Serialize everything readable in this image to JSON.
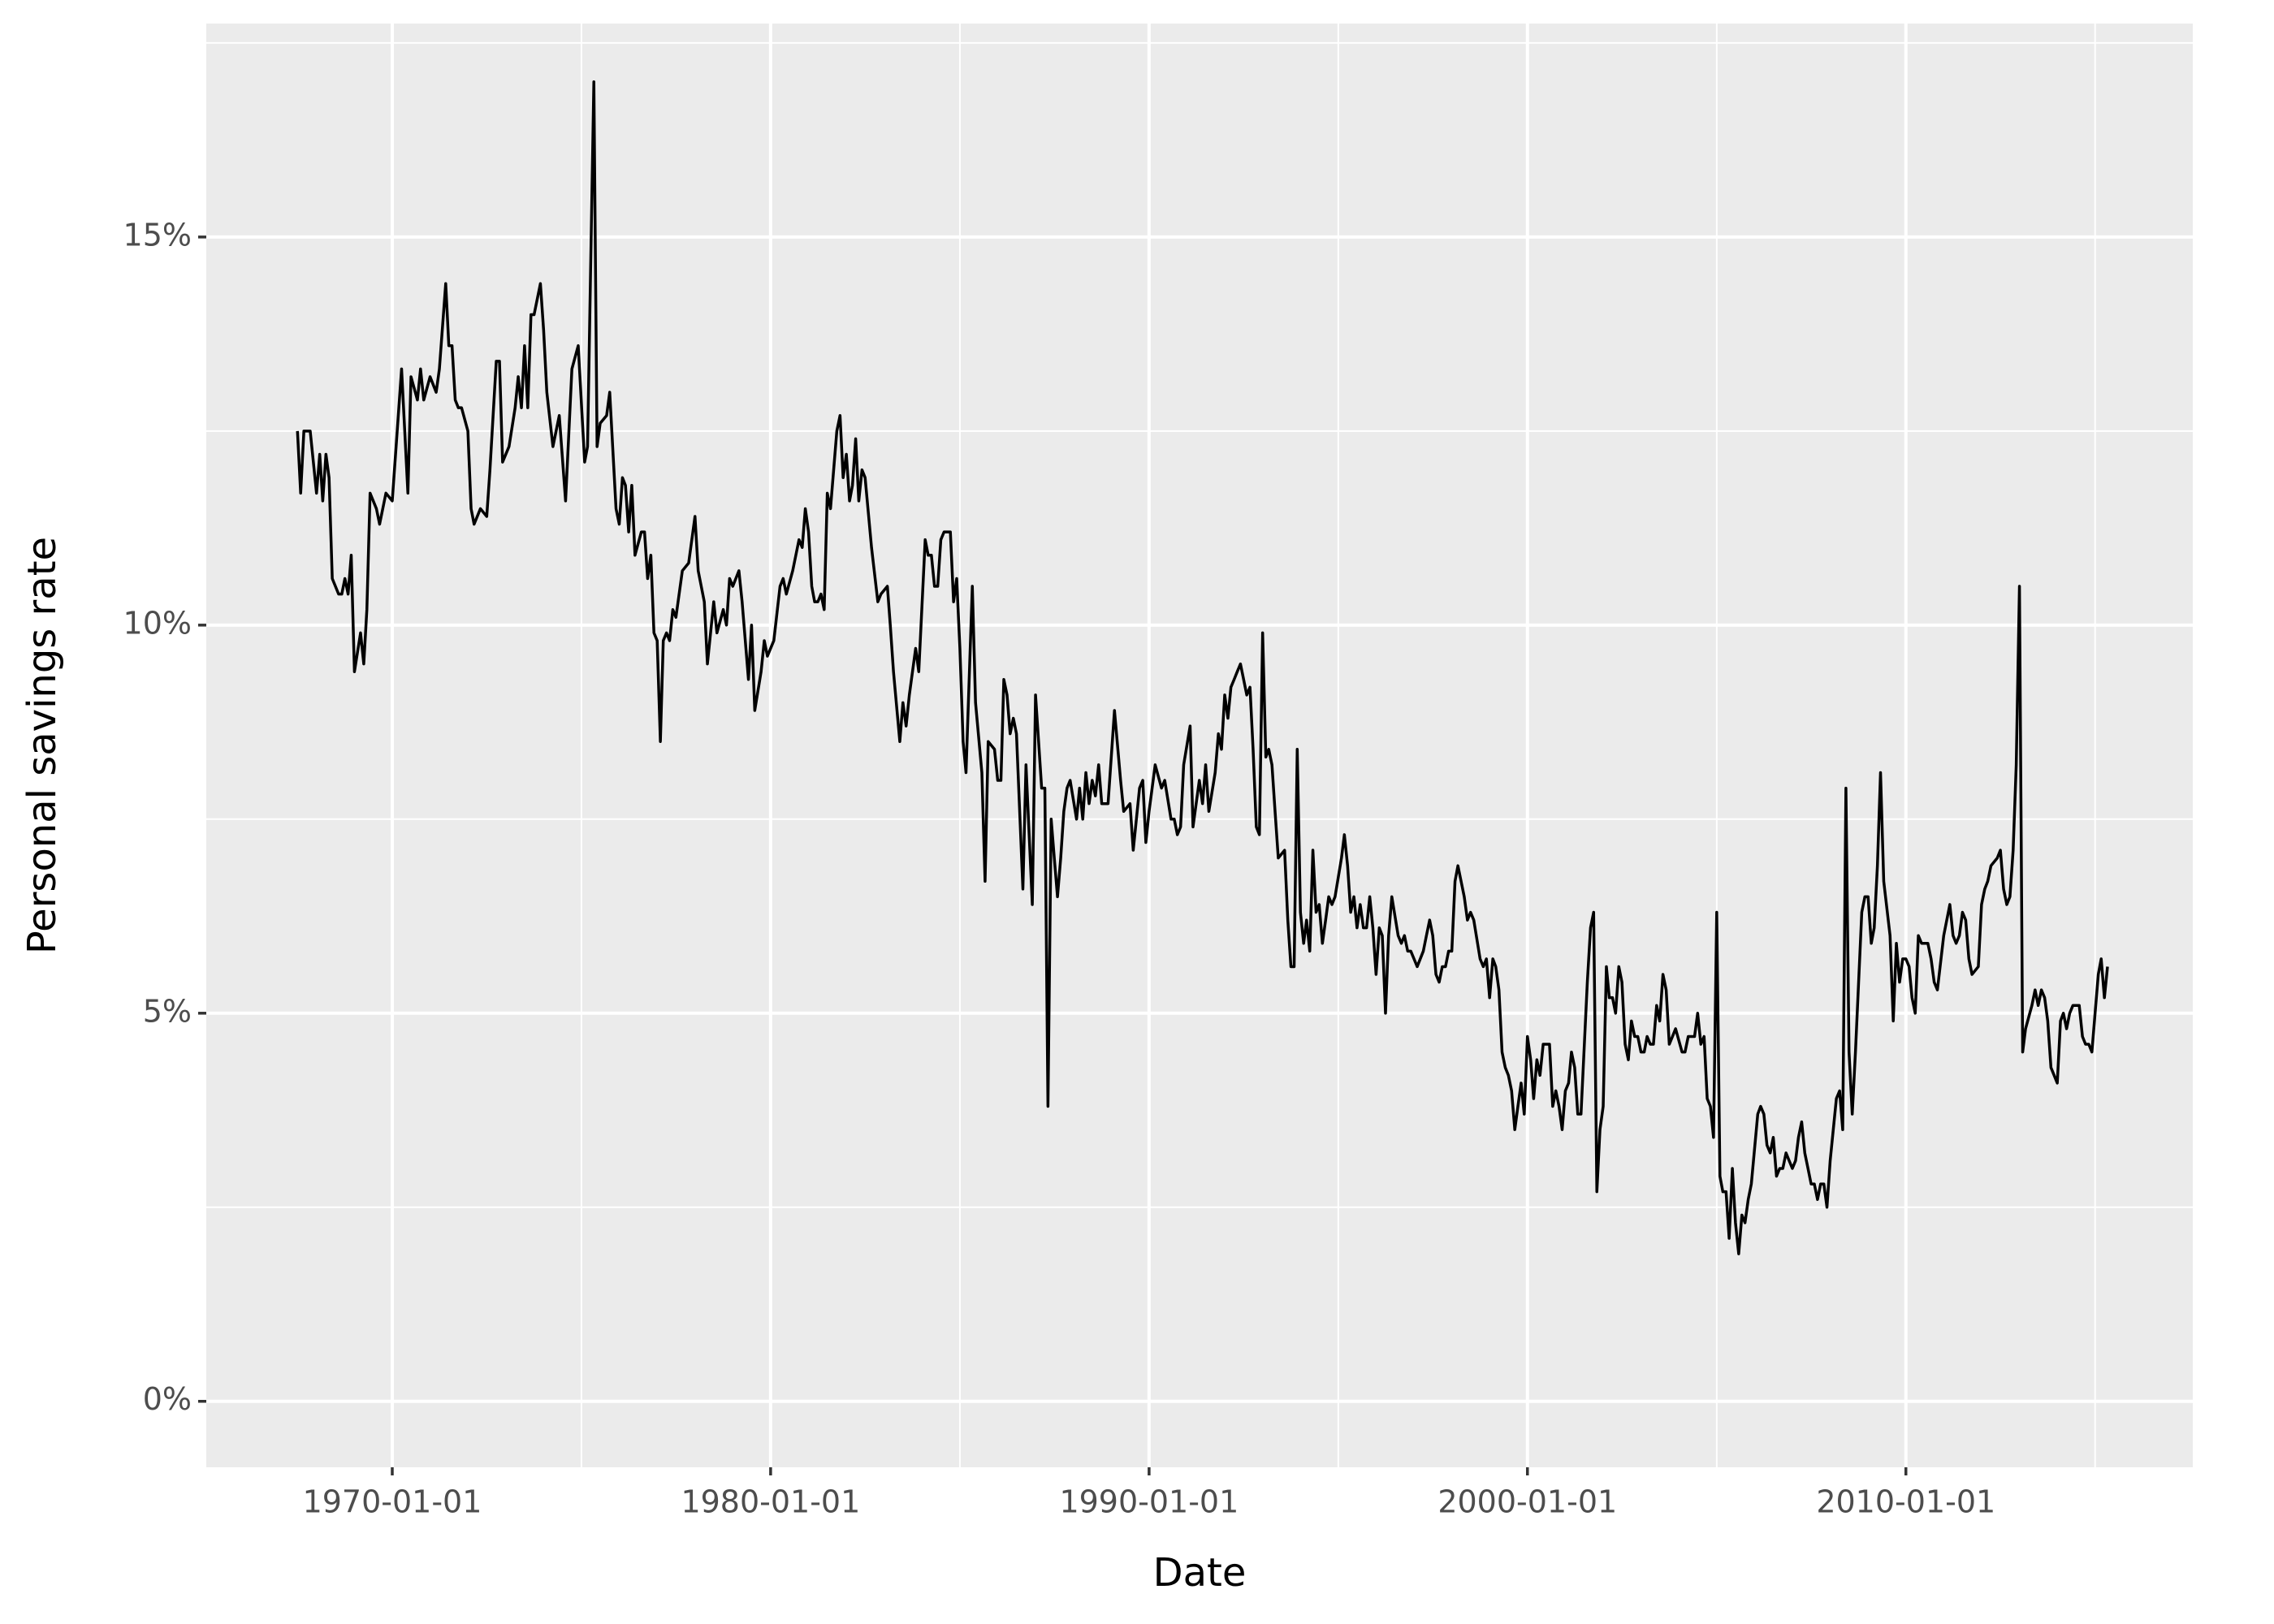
{
  "chart_data": {
    "type": "line",
    "x_label": "Date",
    "y_label": "Personal savings rate",
    "color": "#000000",
    "grid": true,
    "background": "#ebebeb",
    "xlim": [
      "1965-02-01",
      "2017-08-01"
    ],
    "xticks": [
      "1970-01-01",
      "1980-01-01",
      "1990-01-01",
      "2000-01-01",
      "2010-01-01"
    ],
    "minor_xticks": [
      "1975-01-01",
      "1985-01-01",
      "1995-01-01",
      "2005-01-01",
      "2015-01-01"
    ],
    "ylim": [
      -0.85,
      17.75
    ],
    "yticks": [
      {
        "value": 0,
        "label": "0%"
      },
      {
        "value": 5,
        "label": "5%"
      },
      {
        "value": 10,
        "label": "10%"
      },
      {
        "value": 15,
        "label": "15%"
      }
    ],
    "minor_yticks": [
      2.5,
      7.5,
      12.5,
      17.5
    ],
    "x": [
      "1967-07-01",
      "1967-08-01",
      "1967-09-01",
      "1967-11-01",
      "1968-01-01",
      "1968-02-01",
      "1968-03-01",
      "1968-04-01",
      "1968-05-01",
      "1968-06-01",
      "1968-08-01",
      "1968-09-01",
      "1968-10-01",
      "1968-11-01",
      "1968-12-01",
      "1969-01-01",
      "1969-03-01",
      "1969-04-01",
      "1969-05-01",
      "1969-06-01",
      "1969-08-01",
      "1969-09-01",
      "1969-11-01",
      "1970-01-01",
      "1970-04-01",
      "1970-06-01",
      "1970-07-01",
      "1970-09-01",
      "1970-10-01",
      "1970-11-01",
      "1971-01-01",
      "1971-03-01",
      "1971-04-01",
      "1971-06-01",
      "1971-07-01",
      "1971-08-01",
      "1971-09-01",
      "1971-10-01",
      "1971-11-01",
      "1972-01-01",
      "1972-02-01",
      "1972-03-01",
      "1972-05-01",
      "1972-07-01",
      "1972-08-01",
      "1972-10-01",
      "1972-11-01",
      "1972-12-01",
      "1973-02-01",
      "1973-04-01",
      "1973-05-01",
      "1973-06-01",
      "1973-07-01",
      "1973-08-01",
      "1973-09-01",
      "1973-10-01",
      "1973-12-01",
      "1974-01-01",
      "1974-02-01",
      "1974-04-01",
      "1974-06-01",
      "1974-08-01",
      "1974-10-01",
      "1974-12-01",
      "1975-02-01",
      "1975-03-01",
      "1975-05-01",
      "1975-06-01",
      "1975-07-01",
      "1975-09-01",
      "1975-10-01",
      "1975-12-01",
      "1976-01-01",
      "1976-02-01",
      "1976-03-01",
      "1976-04-01",
      "1976-05-01",
      "1976-06-01",
      "1976-08-01",
      "1976-09-01",
      "1976-10-01",
      "1976-11-01",
      "1976-12-01",
      "1977-01-01",
      "1977-02-01",
      "1977-03-01",
      "1977-04-01",
      "1977-05-01",
      "1977-06-01",
      "1977-07-01",
      "1977-09-01",
      "1977-11-01",
      "1978-01-01",
      "1978-02-01",
      "1978-04-01",
      "1978-05-01",
      "1978-07-01",
      "1978-08-01",
      "1978-10-01",
      "1978-11-01",
      "1978-12-01",
      "1979-01-01",
      "1979-03-01",
      "1979-04-01",
      "1979-06-01",
      "1979-07-01",
      "1979-08-01",
      "1979-10-01",
      "1979-11-01",
      "1979-12-01",
      "1980-02-01",
      "1980-04-01",
      "1980-05-01",
      "1980-06-01",
      "1980-08-01",
      "1980-10-01",
      "1980-11-01",
      "1980-12-01",
      "1981-01-01",
      "1981-02-01",
      "1981-03-01",
      "1981-04-01",
      "1981-05-01",
      "1981-06-01",
      "1981-07-01",
      "1981-08-01",
      "1981-10-01",
      "1981-11-01",
      "1981-12-01",
      "1982-01-01",
      "1982-02-01",
      "1982-03-01",
      "1982-04-01",
      "1982-05-01",
      "1982-06-01",
      "1982-07-01",
      "1982-09-01",
      "1982-11-01",
      "1982-12-01",
      "1983-02-01",
      "1983-03-01",
      "1983-04-01",
      "1983-06-01",
      "1983-07-01",
      "1983-08-01",
      "1983-09-01",
      "1983-11-01",
      "1983-12-01",
      "1984-02-01",
      "1984-03-01",
      "1984-04-01",
      "1984-05-01",
      "1984-06-01",
      "1984-07-01",
      "1984-08-01",
      "1984-10-01",
      "1984-11-01",
      "1984-12-01",
      "1985-01-01",
      "1985-02-01",
      "1985-03-01",
      "1985-05-01",
      "1985-06-01",
      "1985-08-01",
      "1985-09-01",
      "1985-10-01",
      "1985-12-01",
      "1986-01-01",
      "1986-02-01",
      "1986-03-01",
      "1986-04-01",
      "1986-05-01",
      "1986-06-01",
      "1986-07-01",
      "1986-09-01",
      "1986-10-01",
      "1986-12-01",
      "1987-01-01",
      "1987-03-01",
      "1987-04-01",
      "1987-05-01",
      "1987-06-01",
      "1987-07-01",
      "1987-08-01",
      "1987-09-01",
      "1987-10-01",
      "1987-11-01",
      "1987-12-01",
      "1988-02-01",
      "1988-03-01",
      "1988-04-01",
      "1988-05-01",
      "1988-06-01",
      "1988-07-01",
      "1988-08-01",
      "1988-09-01",
      "1988-10-01",
      "1988-12-01",
      "1989-01-01",
      "1989-02-01",
      "1989-04-01",
      "1989-05-01",
      "1989-07-01",
      "1989-08-01",
      "1989-10-01",
      "1989-11-01",
      "1989-12-01",
      "1990-01-01",
      "1990-03-01",
      "1990-05-01",
      "1990-06-01",
      "1990-08-01",
      "1990-09-01",
      "1990-10-01",
      "1990-11-01",
      "1990-12-01",
      "1991-02-01",
      "1991-03-01",
      "1991-05-01",
      "1991-06-01",
      "1991-07-01",
      "1991-08-01",
      "1991-10-01",
      "1991-11-01",
      "1991-12-01",
      "1992-01-01",
      "1992-02-01",
      "1992-03-01",
      "1992-04-01",
      "1992-05-01",
      "1992-06-01",
      "1992-08-01",
      "1992-09-01",
      "1992-10-01",
      "1992-11-01",
      "1992-12-01",
      "1993-01-01",
      "1993-02-01",
      "1993-03-01",
      "1993-04-01",
      "1993-05-01",
      "1993-06-01",
      "1993-08-01",
      "1993-09-01",
      "1993-10-01",
      "1993-11-01",
      "1993-12-01",
      "1994-01-01",
      "1994-02-01",
      "1994-03-01",
      "1994-04-01",
      "1994-05-01",
      "1994-06-01",
      "1994-07-01",
      "1994-08-01",
      "1994-09-01",
      "1994-10-01",
      "1994-11-01",
      "1994-12-01",
      "1995-02-01",
      "1995-03-01",
      "1995-04-01",
      "1995-05-01",
      "1995-06-01",
      "1995-07-01",
      "1995-08-01",
      "1995-09-01",
      "1995-10-01",
      "1995-11-01",
      "1995-12-01",
      "1996-01-01",
      "1996-02-01",
      "1996-03-01",
      "1996-04-01",
      "1996-05-01",
      "1996-06-01",
      "1996-08-01",
      "1996-09-01",
      "1996-10-01",
      "1996-11-01",
      "1996-12-01",
      "1997-01-01",
      "1997-02-01",
      "1997-04-01",
      "1997-05-01",
      "1997-06-01",
      "1997-07-01",
      "1997-08-01",
      "1997-09-01",
      "1997-10-01",
      "1997-11-01",
      "1997-12-01",
      "1998-01-01",
      "1998-02-01",
      "1998-03-01",
      "1998-05-01",
      "1998-06-01",
      "1998-07-01",
      "1998-08-01",
      "1998-10-01",
      "1998-11-01",
      "1998-12-01",
      "1999-01-01",
      "1999-02-01",
      "1999-03-01",
      "1999-04-01",
      "1999-05-01",
      "1999-06-01",
      "1999-07-01",
      "1999-08-01",
      "1999-09-01",
      "1999-10-01",
      "1999-11-01",
      "1999-12-01",
      "2000-01-01",
      "2000-02-01",
      "2000-03-01",
      "2000-04-01",
      "2000-05-01",
      "2000-06-01",
      "2000-08-01",
      "2000-09-01",
      "2000-10-01",
      "2000-11-01",
      "2000-12-01",
      "2001-01-01",
      "2001-02-01",
      "2001-03-01",
      "2001-04-01",
      "2001-05-01",
      "2001-06-01",
      "2001-08-01",
      "2001-09-01",
      "2001-10-01",
      "2001-11-01",
      "2001-12-01",
      "2002-01-01",
      "2002-02-01",
      "2002-03-01",
      "2002-04-01",
      "2002-05-01",
      "2002-06-01",
      "2002-07-01",
      "2002-08-01",
      "2002-09-01",
      "2002-10-01",
      "2002-11-01",
      "2002-12-01",
      "2003-01-01",
      "2003-02-01",
      "2003-03-01",
      "2003-04-01",
      "2003-05-01",
      "2003-06-01",
      "2003-07-01",
      "2003-08-01",
      "2003-09-01",
      "2003-10-01",
      "2003-11-01",
      "2003-12-01",
      "2004-02-01",
      "2004-03-01",
      "2004-04-01",
      "2004-06-01",
      "2004-07-01",
      "2004-08-01",
      "2004-09-01",
      "2004-10-01",
      "2004-11-01",
      "2004-12-01",
      "2005-01-01",
      "2005-02-01",
      "2005-03-01",
      "2005-04-01",
      "2005-05-01",
      "2005-06-01",
      "2005-07-01",
      "2005-08-01",
      "2005-09-01",
      "2005-10-01",
      "2005-11-01",
      "2005-12-01",
      "2006-02-01",
      "2006-03-01",
      "2006-04-01",
      "2006-05-01",
      "2006-06-01",
      "2006-07-01",
      "2006-08-01",
      "2006-09-01",
      "2006-10-01",
      "2006-11-01",
      "2006-12-01",
      "2007-01-01",
      "2007-02-01",
      "2007-03-01",
      "2007-04-01",
      "2007-05-01",
      "2007-06-01",
      "2007-07-01",
      "2007-08-01",
      "2007-09-01",
      "2007-10-01",
      "2007-11-01",
      "2007-12-01",
      "2008-01-01",
      "2008-03-01",
      "2008-04-01",
      "2008-05-01",
      "2008-06-01",
      "2008-07-01",
      "2008-08-01",
      "2008-09-01",
      "2008-11-01",
      "2008-12-01",
      "2009-01-01",
      "2009-02-01",
      "2009-03-01",
      "2009-04-01",
      "2009-05-01",
      "2009-06-01",
      "2009-08-01",
      "2009-09-01",
      "2009-10-01",
      "2009-11-01",
      "2009-12-01",
      "2010-01-01",
      "2010-02-01",
      "2010-03-01",
      "2010-04-01",
      "2010-05-01",
      "2010-06-01",
      "2010-08-01",
      "2010-09-01",
      "2010-10-01",
      "2010-11-01",
      "2011-01-01",
      "2011-03-01",
      "2011-04-01",
      "2011-05-01",
      "2011-06-01",
      "2011-07-01",
      "2011-08-01",
      "2011-09-01",
      "2011-10-01",
      "2011-12-01",
      "2012-01-01",
      "2012-02-01",
      "2012-03-01",
      "2012-04-01",
      "2012-06-01",
      "2012-07-01",
      "2012-08-01",
      "2012-09-01",
      "2012-10-01",
      "2012-11-01",
      "2012-12-01",
      "2013-01-01",
      "2013-02-01",
      "2013-03-01",
      "2013-05-01",
      "2013-06-01",
      "2013-07-01",
      "2013-08-01",
      "2013-09-01",
      "2013-10-01",
      "2013-11-01",
      "2014-01-01",
      "2014-02-01",
      "2014-03-01",
      "2014-04-01",
      "2014-05-01",
      "2014-06-01",
      "2014-08-01",
      "2014-09-01",
      "2014-10-01",
      "2014-11-01",
      "2014-12-01",
      "2015-01-01",
      "2015-02-01",
      "2015-03-01",
      "2015-04-01",
      "2015-05-01"
    ],
    "values": [
      12.5,
      11.7,
      12.5,
      12.5,
      11.7,
      12.2,
      11.6,
      12.2,
      11.9,
      10.6,
      10.4,
      10.4,
      10.6,
      10.4,
      10.9,
      9.4,
      9.9,
      9.5,
      10.2,
      11.7,
      11.5,
      11.3,
      11.7,
      11.6,
      13.3,
      11.7,
      13.2,
      12.9,
      13.3,
      12.9,
      13.2,
      13.0,
      13.3,
      14.4,
      13.6,
      13.6,
      12.9,
      12.8,
      12.8,
      12.5,
      11.5,
      11.3,
      11.5,
      11.4,
      12.0,
      13.4,
      13.4,
      12.1,
      12.3,
      12.8,
      13.2,
      12.8,
      13.6,
      12.8,
      14.0,
      14.0,
      14.4,
      13.8,
      13.0,
      12.3,
      12.7,
      11.6,
      13.3,
      13.6,
      12.1,
      12.3,
      17.0,
      12.3,
      12.6,
      12.7,
      13.0,
      11.5,
      11.3,
      11.9,
      11.8,
      11.2,
      11.8,
      10.9,
      11.2,
      11.2,
      10.6,
      10.9,
      9.9,
      9.8,
      8.5,
      9.8,
      9.9,
      9.8,
      10.2,
      10.1,
      10.7,
      10.8,
      11.4,
      10.7,
      10.3,
      9.5,
      10.3,
      9.9,
      10.2,
      10.0,
      10.6,
      10.5,
      10.7,
      10.3,
      9.3,
      10.0,
      8.9,
      9.4,
      9.8,
      9.6,
      9.8,
      10.5,
      10.6,
      10.4,
      10.7,
      11.1,
      11.0,
      11.5,
      11.2,
      10.5,
      10.3,
      10.3,
      10.4,
      10.2,
      11.7,
      11.5,
      12.5,
      12.7,
      11.9,
      12.2,
      11.6,
      11.8,
      12.4,
      11.6,
      12.0,
      11.9,
      11.0,
      10.3,
      10.4,
      10.5,
      10.0,
      9.4,
      8.5,
      9.0,
      8.7,
      9.1,
      9.7,
      9.4,
      11.1,
      10.9,
      10.9,
      10.5,
      10.5,
      11.1,
      11.2,
      11.2,
      10.3,
      10.6,
      9.7,
      8.5,
      8.1,
      10.5,
      9.0,
      8.1,
      6.7,
      8.5,
      8.4,
      8.0,
      8.0,
      9.3,
      9.1,
      8.6,
      8.8,
      8.6,
      6.6,
      8.2,
      6.4,
      9.1,
      7.9,
      7.9,
      3.8,
      7.5,
      7.0,
      6.5,
      7.0,
      7.6,
      7.9,
      8.0,
      7.5,
      7.9,
      7.5,
      8.1,
      7.7,
      8.0,
      7.8,
      8.2,
      7.7,
      7.7,
      8.3,
      8.9,
      8.0,
      7.6,
      7.7,
      7.1,
      7.9,
      8.0,
      7.2,
      7.6,
      8.2,
      7.9,
      8.0,
      7.5,
      7.5,
      7.3,
      7.4,
      8.2,
      8.7,
      7.4,
      8.0,
      7.7,
      8.2,
      7.6,
      8.1,
      8.6,
      8.4,
      9.1,
      8.8,
      9.2,
      9.3,
      9.4,
      9.5,
      9.1,
      9.2,
      8.4,
      7.4,
      7.3,
      9.9,
      8.3,
      8.4,
      8.2,
      7.6,
      7.0,
      7.1,
      6.2,
      5.6,
      5.6,
      8.4,
      6.3,
      5.9,
      6.2,
      5.8,
      7.1,
      6.3,
      6.4,
      5.9,
      6.2,
      6.5,
      6.4,
      6.5,
      7.0,
      7.3,
      6.9,
      6.3,
      6.5,
      6.1,
      6.4,
      6.1,
      6.1,
      6.5,
      6.1,
      5.5,
      6.1,
      6.0,
      5.0,
      6.0,
      6.5,
      6.0,
      5.9,
      6.0,
      5.8,
      5.8,
      5.7,
      5.6,
      5.8,
      6.0,
      6.2,
      6.0,
      5.5,
      5.4,
      5.6,
      5.6,
      5.8,
      5.8,
      6.7,
      6.9,
      6.5,
      6.2,
      6.3,
      6.2,
      5.7,
      5.6,
      5.7,
      5.2,
      5.7,
      5.6,
      5.3,
      4.5,
      4.3,
      4.2,
      4.0,
      3.5,
      3.8,
      4.1,
      3.7,
      4.7,
      4.4,
      3.9,
      4.4,
      4.2,
      4.6,
      4.6,
      3.8,
      4.0,
      3.8,
      3.5,
      4.0,
      4.1,
      4.5,
      4.3,
      3.7,
      3.7,
      5.4,
      6.1,
      6.3,
      2.7,
      3.5,
      3.8,
      5.6,
      5.2,
      5.2,
      5.0,
      5.6,
      5.4,
      4.6,
      4.4,
      4.9,
      4.7,
      4.7,
      4.5,
      4.5,
      4.7,
      4.6,
      4.6,
      5.1,
      4.9,
      5.5,
      5.3,
      4.6,
      4.7,
      4.8,
      4.5,
      4.5,
      4.7,
      4.7,
      5.0,
      4.6,
      4.7,
      3.9,
      3.8,
      3.4,
      6.3,
      2.9,
      2.7,
      2.7,
      2.1,
      3.0,
      2.3,
      1.9,
      2.4,
      2.3,
      2.6,
      2.8,
      3.7,
      3.8,
      3.7,
      3.3,
      3.2,
      3.4,
      2.9,
      3.0,
      3.0,
      3.2,
      3.1,
      3.0,
      3.1,
      3.4,
      3.6,
      3.2,
      3.0,
      2.8,
      2.8,
      2.6,
      2.8,
      2.8,
      2.5,
      3.1,
      3.9,
      4.0,
      3.5,
      7.9,
      4.5,
      3.7,
      4.5,
      6.3,
      6.5,
      6.5,
      5.9,
      6.1,
      6.9,
      8.1,
      6.7,
      6.0,
      4.9,
      5.9,
      5.4,
      5.7,
      5.7,
      5.6,
      5.2,
      5.0,
      6.0,
      5.9,
      5.9,
      5.7,
      5.4,
      5.3,
      6.0,
      6.4,
      6.0,
      5.9,
      6.0,
      6.3,
      6.2,
      5.7,
      5.5,
      5.6,
      6.4,
      6.6,
      6.7,
      6.9,
      7.0,
      7.1,
      6.6,
      6.4,
      6.5,
      7.1,
      8.2,
      10.5,
      4.5,
      4.8,
      5.1,
      5.3,
      5.1,
      5.3,
      5.2,
      4.9,
      4.3,
      4.1,
      4.9,
      5.0,
      4.8,
      5.0,
      5.1,
      5.1,
      4.7,
      4.6,
      4.6,
      4.5,
      5.0,
      5.5,
      5.7,
      5.2,
      5.6
    ]
  }
}
